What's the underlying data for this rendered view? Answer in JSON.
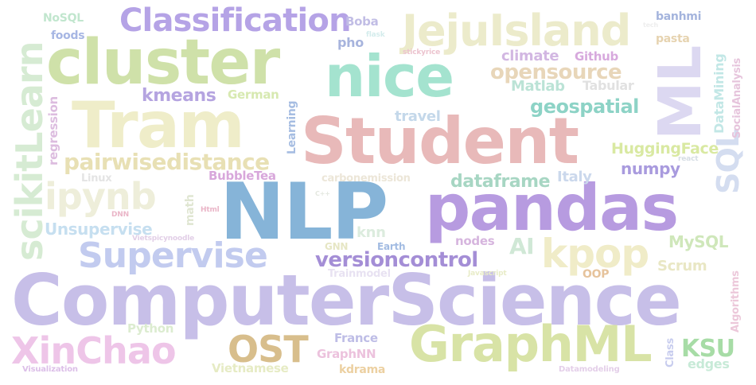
{
  "words": [
    {
      "text": "ComputerScience",
      "color": "#c7bfe8"
    },
    {
      "text": "Student",
      "color": "#e8b9b9"
    },
    {
      "text": "NLP",
      "color": "#86b4d8"
    },
    {
      "text": "pandas",
      "color": "#b79be0"
    },
    {
      "text": "cluster",
      "color": "#cfe1a9"
    },
    {
      "text": "Tram",
      "color": "#efedc9"
    },
    {
      "text": "nice",
      "color": "#a4e3cf"
    },
    {
      "text": "GraphML",
      "color": "#d8e3a6"
    },
    {
      "text": "ML",
      "color": "#dcd8f1"
    },
    {
      "text": "JejuIsland",
      "color": "#ecebcb"
    },
    {
      "text": "Classification",
      "color": "#b5a3e6"
    },
    {
      "text": "Supervise",
      "color": "#c2cbef"
    },
    {
      "text": "XinChao",
      "color": "#eec5e8"
    },
    {
      "text": "scikitLearn",
      "color": "#d6ebd3"
    },
    {
      "text": "ipynb",
      "color": "#eeeeda"
    },
    {
      "text": "OST",
      "color": "#d8be8c"
    },
    {
      "text": "kpop",
      "color": "#f0ecc8"
    },
    {
      "text": "SQL",
      "color": "#d4ddf0"
    },
    {
      "text": "opensource",
      "color": "#e8d6b9"
    },
    {
      "text": "versioncontrol",
      "color": "#a48ed6"
    },
    {
      "text": "pairwisedistance",
      "color": "#e8e0b4"
    },
    {
      "text": "geospatial",
      "color": "#8dd3c6"
    },
    {
      "text": "kmeans",
      "color": "#b5a4e0"
    },
    {
      "text": "dataframe",
      "color": "#a7d6c3"
    },
    {
      "text": "Unsupervise",
      "color": "#c6dff0"
    },
    {
      "text": "HuggingFace",
      "color": "#d9e9a2"
    },
    {
      "text": "numpy",
      "color": "#a99bde"
    },
    {
      "text": "KSU",
      "color": "#a7dca6"
    },
    {
      "text": "AI",
      "color": "#d0e8d6"
    },
    {
      "text": "MySQL",
      "color": "#cfe7ba"
    },
    {
      "text": "Scrum",
      "color": "#e9e7c4"
    },
    {
      "text": "climate",
      "color": "#d2b7e2"
    },
    {
      "text": "Github",
      "color": "#d7a9dd"
    },
    {
      "text": "Matlab",
      "color": "#bbe3d6"
    },
    {
      "text": "Tabular",
      "color": "#e1e1e1"
    },
    {
      "text": "Italy",
      "color": "#cbd8ec"
    },
    {
      "text": "travel",
      "color": "#c4d8ea"
    },
    {
      "text": "knn",
      "color": "#dcecde"
    },
    {
      "text": "German",
      "color": "#d7e9b1"
    },
    {
      "text": "France",
      "color": "#bebde6"
    },
    {
      "text": "Boba",
      "color": "#c1bde5"
    },
    {
      "text": "NoSQL",
      "color": "#c1e6ce"
    },
    {
      "text": "foods",
      "color": "#a6b6e3"
    },
    {
      "text": "pho",
      "color": "#a7b4dd"
    },
    {
      "text": "banhmi",
      "color": "#a4b4dd"
    },
    {
      "text": "pasta",
      "color": "#e6d3b0"
    },
    {
      "text": "BubbleTea",
      "color": "#d8a7db"
    },
    {
      "text": "nodes",
      "color": "#d6b5de"
    },
    {
      "text": "OOP",
      "color": "#e6c39c"
    },
    {
      "text": "GraphNN",
      "color": "#ecc2dd"
    },
    {
      "text": "Vietnamese",
      "color": "#e6ebc4"
    },
    {
      "text": "kdrama",
      "color": "#ecd0a1"
    },
    {
      "text": "edges",
      "color": "#c7ead7"
    },
    {
      "text": "Python",
      "color": "#dcecd0"
    },
    {
      "text": "Earth",
      "color": "#a2bbe2"
    },
    {
      "text": "GNN",
      "color": "#e6e6c4"
    },
    {
      "text": "carbonemission",
      "color": "#ece6d8"
    },
    {
      "text": "Trainmodel",
      "color": "#e8e2f2"
    },
    {
      "text": "Linux",
      "color": "#e4e4e4"
    },
    {
      "text": "Visualization",
      "color": "#dcbfe8"
    },
    {
      "text": "Datamodeling",
      "color": "#e4cfe9"
    },
    {
      "text": "Vietspicynoodle",
      "color": "#e2cfe7"
    },
    {
      "text": "DNN",
      "color": "#eab6c8"
    },
    {
      "text": "Html",
      "color": "#eab6c8"
    },
    {
      "text": "C++",
      "color": "#e4e8e0"
    },
    {
      "text": "Javascript",
      "color": "#e8ecc8"
    },
    {
      "text": "flask",
      "color": "#d4ecec"
    },
    {
      "text": "react",
      "color": "#d6dde4"
    },
    {
      "text": "stickyrice",
      "color": "#ecc4cf"
    },
    {
      "text": "regression",
      "color": "#dcbcdf"
    },
    {
      "text": "Learning",
      "color": "#a6bde2"
    },
    {
      "text": "math",
      "color": "#e0e6d2"
    },
    {
      "text": "DataMining",
      "color": "#c2e7e6"
    },
    {
      "text": "SocialAnalysis",
      "color": "#e6c4dc"
    },
    {
      "text": "Algorithms",
      "color": "#ecc8da"
    },
    {
      "text": "Class",
      "color": "#c7ccee"
    },
    {
      "text": "tech",
      "color": "#eeeeee"
    }
  ]
}
